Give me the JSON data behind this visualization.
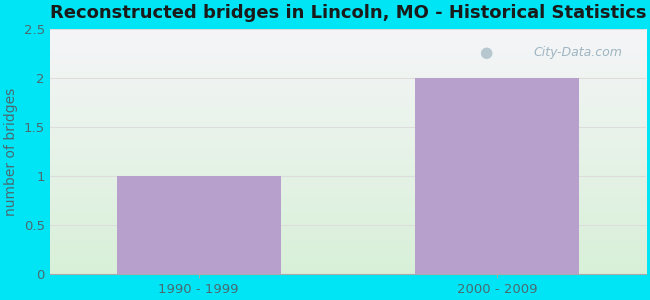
{
  "title": "Reconstructed bridges in Lincoln, MO - Historical Statistics",
  "categories": [
    "1990 - 1999",
    "2000 - 2009"
  ],
  "values": [
    1,
    2
  ],
  "bar_color": "#b8a0cc",
  "bar_width": 0.55,
  "ylim": [
    0,
    2.5
  ],
  "yticks": [
    0,
    0.5,
    1,
    1.5,
    2,
    2.5
  ],
  "ylabel": "number of bridges",
  "xlabel": "",
  "title_fontsize": 13,
  "label_fontsize": 10,
  "tick_fontsize": 9.5,
  "bg_color_outer": "#00e5f5",
  "bg_grad_top": "#f5f5f8",
  "bg_grad_bottom": "#d8f0d8",
  "grid_color": "#dddddd",
  "axis_label_color": "#4a6a72",
  "tick_label_color": "#4a6a72",
  "title_color": "#1a1a1a",
  "watermark_text": "City-Data.com"
}
